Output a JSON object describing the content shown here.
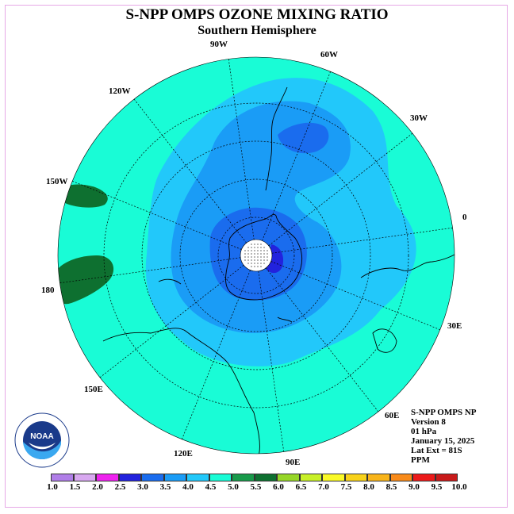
{
  "title": "S-NPP OMPS OZONE MIXING RATIO",
  "subtitle": "Southern Hemisphere",
  "longitude_labels": [
    "90W",
    "60W",
    "30W",
    "0",
    "30E",
    "60E",
    "90E",
    "120E",
    "150E",
    "180",
    "150W",
    "120W"
  ],
  "info": {
    "instrument": "S-NPP OMPS NP",
    "version": "Version 8",
    "level": "01 hPa",
    "date": "January 15, 2025",
    "lat_ext": "Lat Ext = 81S",
    "units": "PPM"
  },
  "colorbar": {
    "labels": [
      "1.0",
      "1.5",
      "2.0",
      "2.5",
      "3.0",
      "3.5",
      "4.0",
      "4.5",
      "5.0",
      "5.5",
      "6.0",
      "6.5",
      "7.0",
      "7.5",
      "8.0",
      "8.5",
      "9.0",
      "9.5",
      "10.0"
    ],
    "colors": [
      "#b07ee8",
      "#d8a8f0",
      "#ee22ee",
      "#2222dd",
      "#1a6cee",
      "#1a9cf6",
      "#22c8fa",
      "#19fcd6",
      "#189a4a",
      "#0e7030",
      "#96d628",
      "#c8f028",
      "#fafa28",
      "#f8d21a",
      "#f8b41a",
      "#f88a1a",
      "#ec1a1a",
      "#c81a1a",
      "#8a5a3a"
    ]
  },
  "map_colors": {
    "ocean_bg": "#19fcd6",
    "level_4_0": "#22c8fa",
    "level_3_5": "#1a9cf6",
    "level_3_0": "#1a6cee",
    "level_2_5": "#2222dd",
    "level_5_5": "#0e7030"
  },
  "logo_text": "NOAA"
}
